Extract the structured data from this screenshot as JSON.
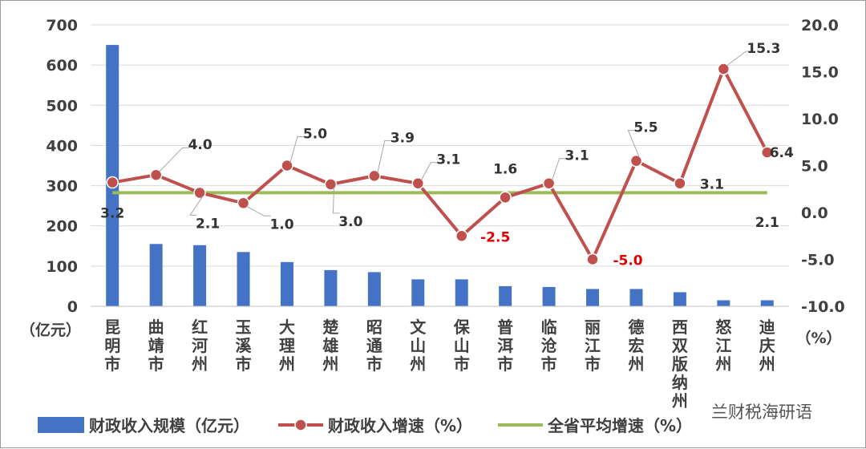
{
  "chart_data": {
    "type": "bar",
    "categories": [
      "昆明市",
      "曲靖市",
      "红河州",
      "玉溪市",
      "大理州",
      "楚雄州",
      "昭通市",
      "文山州",
      "保山市",
      "普洱市",
      "临沧市",
      "丽江市",
      "德宏州",
      "西双版纳州",
      "怒江州",
      "迪庆州"
    ],
    "series": [
      {
        "name": "财政收入规模（亿元）",
        "type": "bar",
        "axis": "left",
        "color": "#4472c4",
        "values": [
          650,
          155,
          152,
          135,
          110,
          90,
          85,
          67,
          67,
          50,
          48,
          43,
          43,
          35,
          15,
          15
        ]
      },
      {
        "name": "财政收入增速（%）",
        "type": "line",
        "axis": "right",
        "color": "#c0504d",
        "values": [
          3.2,
          4.0,
          2.1,
          1.0,
          5.0,
          3.0,
          3.9,
          3.1,
          -2.5,
          1.6,
          3.1,
          -5.0,
          5.5,
          3.1,
          15.3,
          6.4
        ],
        "labels": [
          "3.2",
          "4.0",
          "2.1",
          "1.0",
          "5.0",
          "3.0",
          "3.9",
          "3.1",
          "-2.5",
          "1.6",
          "3.1",
          "-5.0",
          "5.5",
          "3.1",
          "15.3",
          "6.4"
        ]
      },
      {
        "name": "全省平均增速（%）",
        "type": "line",
        "axis": "right",
        "color": "#9bbb59",
        "values": [
          2.1,
          2.1,
          2.1,
          2.1,
          2.1,
          2.1,
          2.1,
          2.1,
          2.1,
          2.1,
          2.1,
          2.1,
          2.1,
          2.1,
          2.1,
          2.1
        ],
        "label": "2.1"
      }
    ],
    "y_left": {
      "ylim": [
        0,
        700
      ],
      "ticks": [
        "0",
        "100",
        "200",
        "300",
        "400",
        "500",
        "600",
        "700"
      ],
      "unit": "（亿元）"
    },
    "y_right": {
      "ylim": [
        -10,
        20
      ],
      "ticks": [
        "-10.0",
        "-5.0",
        "0.0",
        "5.0",
        "10.0",
        "15.0",
        "20.0"
      ],
      "unit": "（%）"
    },
    "grid": true,
    "legend_position": "bottom"
  },
  "watermark": "兰财税海研语",
  "colors": {
    "bar": "#4472c4",
    "growth_line": "#c0504d",
    "average_line": "#9bbb59"
  }
}
